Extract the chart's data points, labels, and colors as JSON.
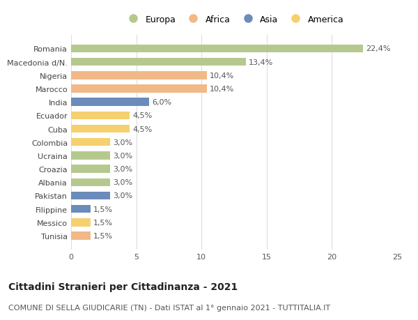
{
  "countries": [
    "Romania",
    "Macedonia d/N.",
    "Nigeria",
    "Marocco",
    "India",
    "Ecuador",
    "Cuba",
    "Colombia",
    "Ucraina",
    "Croazia",
    "Albania",
    "Pakistan",
    "Filippine",
    "Messico",
    "Tunisia"
  ],
  "values": [
    22.4,
    13.4,
    10.4,
    10.4,
    6.0,
    4.5,
    4.5,
    3.0,
    3.0,
    3.0,
    3.0,
    3.0,
    1.5,
    1.5,
    1.5
  ],
  "labels": [
    "22,4%",
    "13,4%",
    "10,4%",
    "10,4%",
    "6,0%",
    "4,5%",
    "4,5%",
    "3,0%",
    "3,0%",
    "3,0%",
    "3,0%",
    "3,0%",
    "1,5%",
    "1,5%",
    "1,5%"
  ],
  "continents": [
    "Europa",
    "Europa",
    "Africa",
    "Africa",
    "Asia",
    "America",
    "America",
    "America",
    "Europa",
    "Europa",
    "Europa",
    "Asia",
    "Asia",
    "America",
    "Africa"
  ],
  "colors": {
    "Europa": "#b5c98e",
    "Africa": "#f0b987",
    "Asia": "#6b8cba",
    "America": "#f5d06e"
  },
  "legend_order": [
    "Europa",
    "Africa",
    "Asia",
    "America"
  ],
  "title": "Cittadini Stranieri per Cittadinanza - 2021",
  "subtitle": "COMUNE DI SELLA GIUDICARIE (TN) - Dati ISTAT al 1° gennaio 2021 - TUTTITALIA.IT",
  "xlim": [
    0,
    25
  ],
  "xticks": [
    0,
    5,
    10,
    15,
    20,
    25
  ],
  "background_color": "#ffffff",
  "grid_color": "#dddddd",
  "bar_height": 0.6,
  "label_fontsize": 8,
  "title_fontsize": 10,
  "subtitle_fontsize": 8,
  "tick_fontsize": 8,
  "legend_fontsize": 9
}
